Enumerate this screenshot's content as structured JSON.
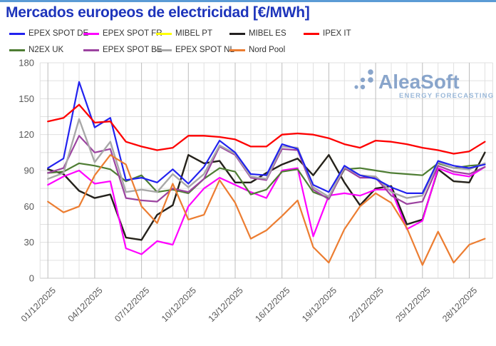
{
  "page": {
    "top_border_color": "#5b9bd5",
    "title_color": "#1d34bb"
  },
  "watermark": {
    "brand": "AleaSoft",
    "tagline": "ENERGY FORECASTING",
    "brand_color": "#7d9cc6",
    "tagline_color": "#8fb0d4"
  },
  "chart_data": {
    "type": "line",
    "title": "Mercados europeos de electricidad [€/MWh]",
    "xlabel": "",
    "ylabel": "",
    "ylim": [
      0,
      180
    ],
    "yticks": [
      0,
      30,
      60,
      90,
      120,
      150,
      180
    ],
    "grid_minor_step": 15,
    "grid": "on",
    "legend_position": "top",
    "x": [
      "01/12/2025",
      "02/12/2025",
      "03/12/2025",
      "04/12/2025",
      "05/12/2025",
      "06/12/2025",
      "07/12/2025",
      "08/12/2025",
      "09/12/2025",
      "10/12/2025",
      "11/12/2025",
      "12/12/2025",
      "13/12/2025",
      "14/12/2025",
      "15/12/2025",
      "16/12/2025",
      "17/12/2025",
      "18/12/2025",
      "19/12/2025",
      "20/12/2025",
      "21/12/2025",
      "22/12/2025",
      "23/12/2025",
      "24/12/2025",
      "25/12/2025",
      "26/12/2025",
      "27/12/2025",
      "28/12/2025",
      "29/12/2025"
    ],
    "xtick_labels": [
      "01/12/2025",
      "04/12/2025",
      "07/12/2025",
      "10/12/2025",
      "13/12/2025",
      "16/12/2025",
      "19/12/2025",
      "22/12/2025",
      "25/12/2025",
      "28/12/2025"
    ],
    "series": [
      {
        "name": "EPEX SPOT DE",
        "color": "#2222ef",
        "width": 2.2,
        "values": [
          92,
          100,
          164,
          126,
          134,
          82,
          84,
          80,
          91,
          79,
          93,
          115,
          105,
          87,
          86,
          112,
          108,
          78,
          72,
          94,
          86,
          83,
          76,
          71,
          71,
          98,
          94,
          92,
          95
        ]
      },
      {
        "name": "EPEX SPOT FR",
        "color": "#ff00ff",
        "width": 2.2,
        "values": [
          78,
          85,
          90,
          79,
          81,
          25,
          20,
          31,
          28,
          60,
          75,
          84,
          78,
          72,
          67,
          90,
          92,
          35,
          69,
          71,
          69,
          74,
          74,
          41,
          48,
          92,
          87,
          85,
          93
        ]
      },
      {
        "name": "MIBEL PT",
        "color": "#ffff00",
        "width": 2.2,
        "values": [
          91,
          87,
          73,
          67,
          70,
          34,
          32,
          53,
          61,
          103,
          96,
          98,
          80,
          80,
          88,
          95,
          100,
          86,
          103,
          80,
          61,
          75,
          77,
          45,
          49,
          91,
          81,
          80,
          105
        ]
      },
      {
        "name": "MIBEL ES",
        "color": "#232020",
        "width": 2.4,
        "values": [
          91,
          87,
          73,
          67,
          70,
          34,
          32,
          53,
          61,
          103,
          96,
          98,
          80,
          80,
          88,
          95,
          100,
          86,
          103,
          80,
          61,
          75,
          77,
          45,
          49,
          91,
          81,
          80,
          105
        ]
      },
      {
        "name": "IPEX IT",
        "color": "#fe0000",
        "width": 2.3,
        "values": [
          131,
          134,
          145,
          130,
          131,
          114,
          110,
          107,
          109,
          119,
          119,
          118,
          116,
          110,
          110,
          120,
          121,
          120,
          117,
          112,
          109,
          115,
          114,
          112,
          109,
          107,
          104,
          106,
          114
        ]
      },
      {
        "name": "N2EX UK",
        "color": "#4e7d33",
        "width": 2.2,
        "values": [
          88,
          89,
          96,
          94,
          91,
          81,
          86,
          72,
          74,
          71,
          83,
          92,
          89,
          70,
          74,
          89,
          91,
          72,
          67,
          91,
          92,
          90,
          88,
          87,
          86,
          96,
          92,
          94,
          95
        ]
      },
      {
        "name": "EPEX SPOT BE",
        "color": "#9c43a0",
        "width": 2.2,
        "values": [
          88,
          92,
          119,
          105,
          108,
          67,
          65,
          64,
          75,
          72,
          83,
          110,
          103,
          84,
          82,
          108,
          107,
          74,
          66,
          92,
          84,
          84,
          69,
          62,
          64,
          94,
          89,
          87,
          93
        ]
      },
      {
        "name": "EPEX SPOT NL",
        "color": "#a8a8a8",
        "width": 2.4,
        "values": [
          83,
          88,
          133,
          97,
          114,
          72,
          74,
          72,
          87,
          76,
          87,
          111,
          104,
          85,
          83,
          110,
          109,
          76,
          68,
          93,
          86,
          85,
          72,
          67,
          69,
          97,
          92,
          91,
          96
        ]
      },
      {
        "name": "Nord Pool",
        "color": "#ec7d31",
        "width": 2.2,
        "values": [
          64,
          55,
          60,
          86,
          103,
          95,
          60,
          46,
          79,
          49,
          53,
          82,
          63,
          33,
          40,
          52,
          65,
          26,
          13,
          41,
          60,
          71,
          63,
          42,
          11,
          39,
          13,
          28,
          33
        ]
      }
    ],
    "axis_text_color": "#595959",
    "grid_minor_color": "#e0e0e0",
    "grid_major_color": "#bdbdbd"
  }
}
